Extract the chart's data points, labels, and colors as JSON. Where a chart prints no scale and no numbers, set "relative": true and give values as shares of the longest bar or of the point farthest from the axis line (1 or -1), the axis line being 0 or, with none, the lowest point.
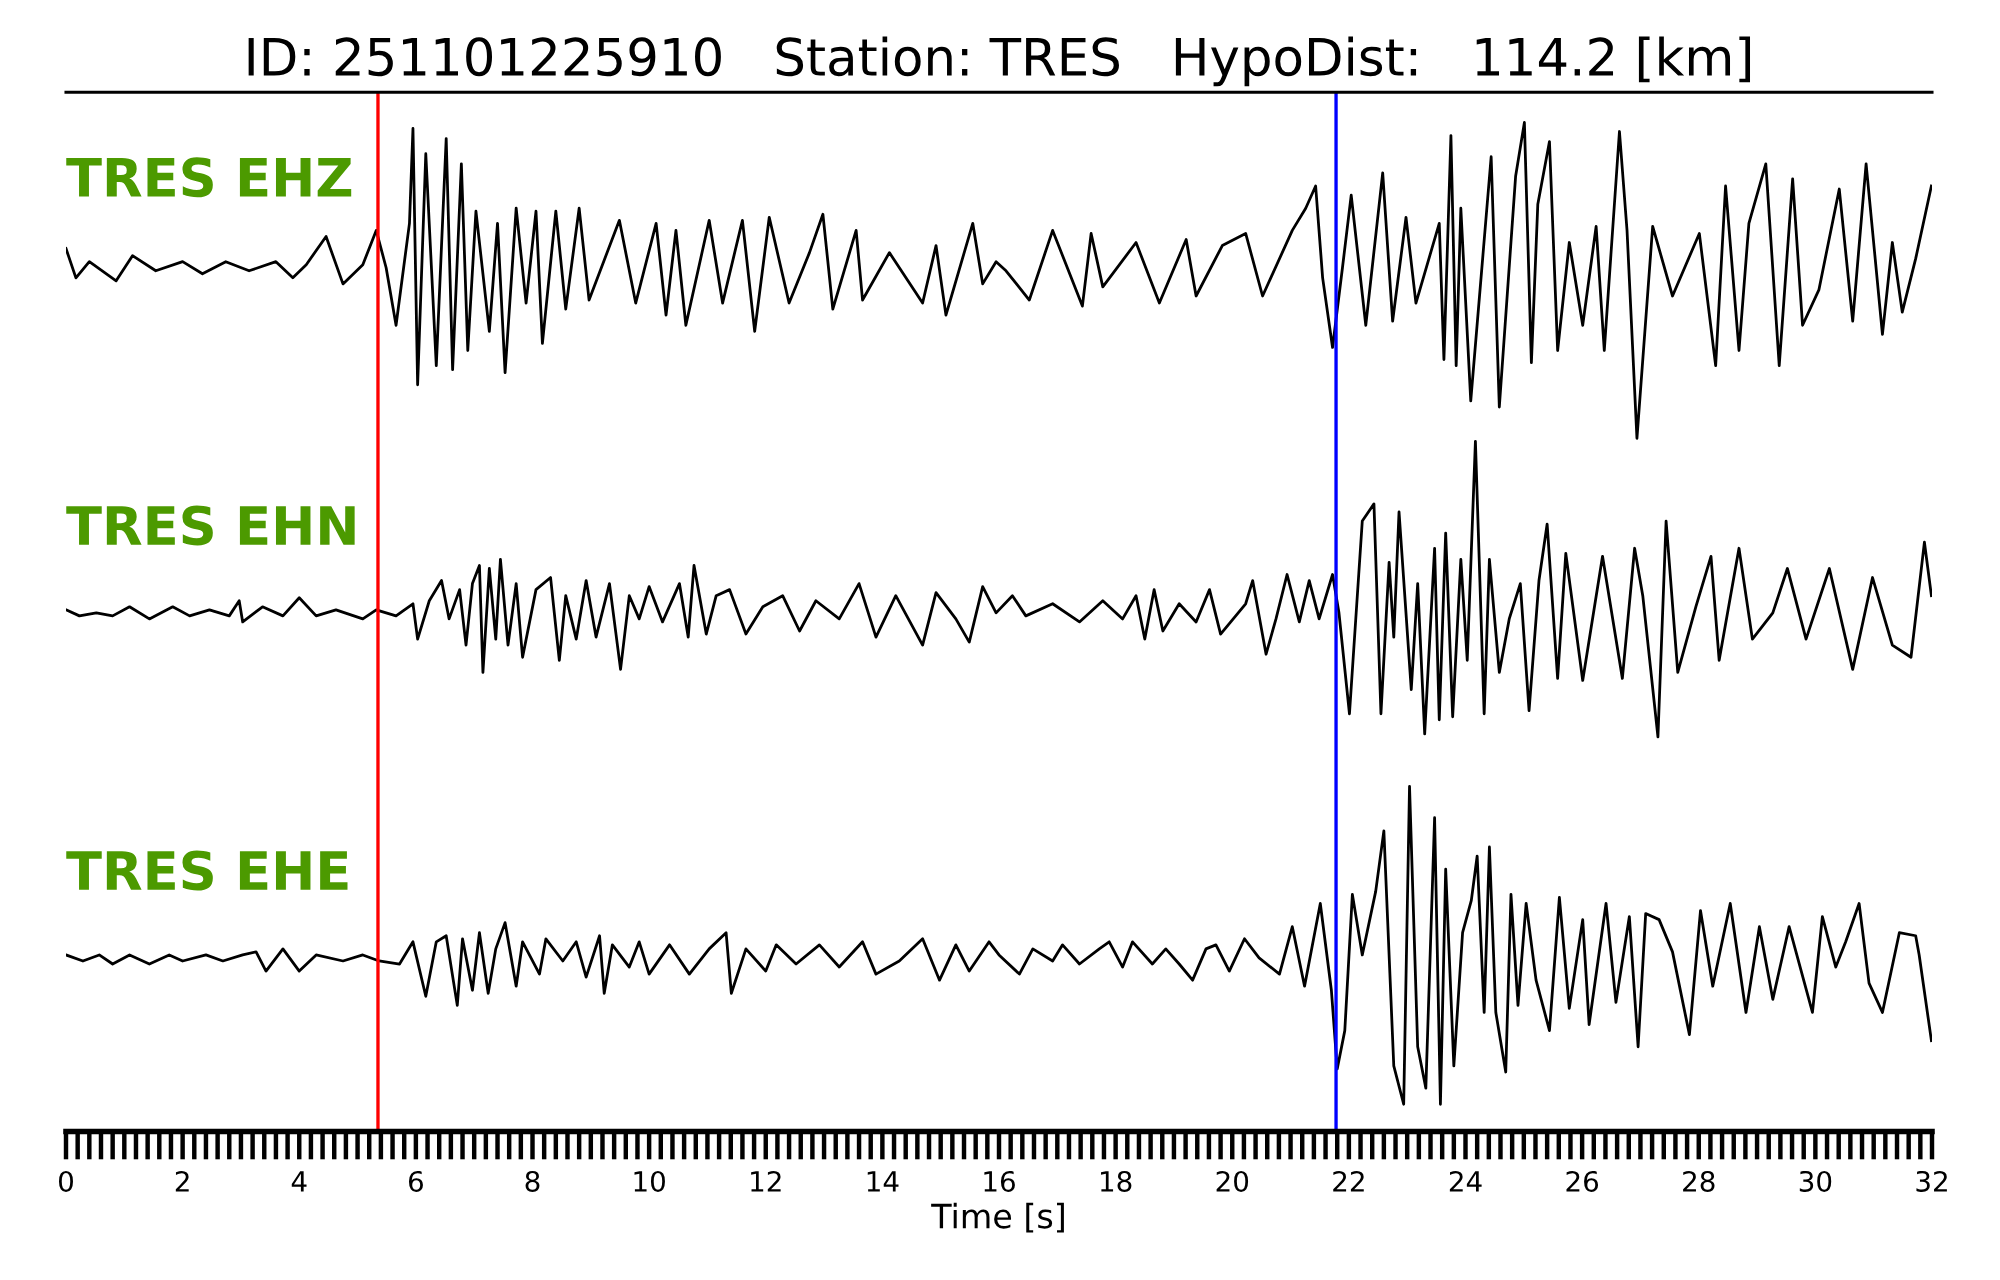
{
  "chart_data": {
    "type": "line",
    "title": "ID: 251101225910   Station: TRES   HypoDist:   114.2 [km]",
    "xlabel": "Time [s]",
    "relative": true,
    "xlim": [
      0,
      32
    ],
    "xticks": [
      0,
      {
        "value": 0.2,
        "label": null
      },
      {
        "value": 0.4,
        "label": null
      },
      {
        "value": 0.6,
        "label": null
      },
      {
        "value": 0.8,
        "label": null
      },
      {
        "value": 1,
        "label": null
      },
      {
        "value": 1.2,
        "label": null
      },
      {
        "value": 1.4,
        "label": null
      },
      {
        "value": 1.6,
        "label": null
      },
      {
        "value": 1.8,
        "label": null
      },
      2,
      {
        "value": 2.2,
        "label": null
      },
      {
        "value": 2.4,
        "label": null
      },
      {
        "value": 2.6,
        "label": null
      },
      {
        "value": 2.8,
        "label": null
      },
      {
        "value": 3,
        "label": null
      },
      {
        "value": 3.2,
        "label": null
      },
      {
        "value": 3.4,
        "label": null
      },
      {
        "value": 3.6,
        "label": null
      },
      {
        "value": 3.8,
        "label": null
      },
      4,
      {
        "value": 4.2,
        "label": null
      },
      {
        "value": 4.4,
        "label": null
      },
      {
        "value": 4.6,
        "label": null
      },
      {
        "value": 4.8,
        "label": null
      },
      {
        "value": 5,
        "label": null
      },
      {
        "value": 5.2,
        "label": null
      },
      {
        "value": 5.4,
        "label": null
      },
      {
        "value": 5.6,
        "label": null
      },
      {
        "value": 5.8,
        "label": null
      },
      6,
      {
        "value": 6.2,
        "label": null
      },
      {
        "value": 6.4,
        "label": null
      },
      {
        "value": 6.6,
        "label": null
      },
      {
        "value": 6.8,
        "label": null
      },
      {
        "value": 7,
        "label": null
      },
      {
        "value": 7.2,
        "label": null
      },
      {
        "value": 7.4,
        "label": null
      },
      {
        "value": 7.6,
        "label": null
      },
      {
        "value": 7.8,
        "label": null
      },
      8,
      {
        "value": 8.2,
        "label": null
      },
      {
        "value": 8.4,
        "label": null
      },
      {
        "value": 8.6,
        "label": null
      },
      {
        "value": 8.8,
        "label": null
      },
      {
        "value": 9,
        "label": null
      },
      {
        "value": 9.2,
        "label": null
      },
      {
        "value": 9.4,
        "label": null
      },
      {
        "value": 9.6,
        "label": null
      },
      {
        "value": 9.8,
        "label": null
      },
      10,
      {
        "value": 10.2,
        "label": null
      },
      {
        "value": 10.4,
        "label": null
      },
      {
        "value": 10.6,
        "label": null
      },
      {
        "value": 10.8,
        "label": null
      },
      {
        "value": 11,
        "label": null
      },
      {
        "value": 11.2,
        "label": null
      },
      {
        "value": 11.4,
        "label": null
      },
      {
        "value": 11.6,
        "label": null
      },
      {
        "value": 11.8,
        "label": null
      },
      12,
      {
        "value": 12.2,
        "label": null
      },
      {
        "value": 12.4,
        "label": null
      },
      {
        "value": 12.6,
        "label": null
      },
      {
        "value": 12.8,
        "label": null
      },
      {
        "value": 13,
        "label": null
      },
      {
        "value": 13.2,
        "label": null
      },
      {
        "value": 13.4,
        "label": null
      },
      {
        "value": 13.6,
        "label": null
      },
      {
        "value": 13.8,
        "label": null
      },
      14,
      {
        "value": 14.2,
        "label": null
      },
      {
        "value": 14.4,
        "label": null
      },
      {
        "value": 14.6,
        "label": null
      },
      {
        "value": 14.8,
        "label": null
      },
      {
        "value": 15,
        "label": null
      },
      {
        "value": 15.2,
        "label": null
      },
      {
        "value": 15.4,
        "label": null
      },
      {
        "value": 15.6,
        "label": null
      },
      {
        "value": 15.8,
        "label": null
      },
      16,
      {
        "value": 16.2,
        "label": null
      },
      {
        "value": 16.4,
        "label": null
      },
      {
        "value": 16.6,
        "label": null
      },
      {
        "value": 16.8,
        "label": null
      },
      {
        "value": 17,
        "label": null
      },
      {
        "value": 17.2,
        "label": null
      },
      {
        "value": 17.4,
        "label": null
      },
      {
        "value": 17.6,
        "label": null
      },
      {
        "value": 17.8,
        "label": null
      },
      18,
      {
        "value": 18.2,
        "label": null
      },
      {
        "value": 18.4,
        "label": null
      },
      {
        "value": 18.6,
        "label": null
      },
      {
        "value": 18.8,
        "label": null
      },
      {
        "value": 19,
        "label": null
      },
      {
        "value": 19.2,
        "label": null
      },
      {
        "value": 19.4,
        "label": null
      },
      {
        "value": 19.6,
        "label": null
      },
      {
        "value": 19.8,
        "label": null
      },
      20,
      {
        "value": 20.2,
        "label": null
      },
      {
        "value": 20.4,
        "label": null
      },
      {
        "value": 20.6,
        "label": null
      },
      {
        "value": 20.8,
        "label": null
      },
      {
        "value": 21,
        "label": null
      },
      {
        "value": 21.2,
        "label": null
      },
      {
        "value": 21.4,
        "label": null
      },
      {
        "value": 21.6,
        "label": null
      },
      {
        "value": 21.8,
        "label": null
      },
      22,
      {
        "value": 22.2,
        "label": null
      },
      {
        "value": 22.4,
        "label": null
      },
      {
        "value": 22.6,
        "label": null
      },
      {
        "value": 22.8,
        "label": null
      },
      {
        "value": 23,
        "label": null
      },
      {
        "value": 23.2,
        "label": null
      },
      {
        "value": 23.4,
        "label": null
      },
      {
        "value": 23.6,
        "label": null
      },
      {
        "value": 23.8,
        "label": null
      },
      24,
      {
        "value": 24.2,
        "label": null
      },
      {
        "value": 24.4,
        "label": null
      },
      {
        "value": 24.6,
        "label": null
      },
      {
        "value": 24.8,
        "label": null
      },
      {
        "value": 25,
        "label": null
      },
      {
        "value": 25.2,
        "label": null
      },
      {
        "value": 25.4,
        "label": null
      },
      {
        "value": 25.6,
        "label": null
      },
      {
        "value": 25.8,
        "label": null
      },
      26,
      {
        "value": 26.2,
        "label": null
      },
      {
        "value": 26.4,
        "label": null
      },
      {
        "value": 26.6,
        "label": null
      },
      {
        "value": 26.8,
        "label": null
      },
      {
        "value": 27,
        "label": null
      },
      {
        "value": 27.2,
        "label": null
      },
      {
        "value": 27.4,
        "label": null
      },
      {
        "value": 27.6,
        "label": null
      },
      {
        "value": 27.8,
        "label": null
      },
      28,
      {
        "value": 28.2,
        "label": null
      },
      {
        "value": 28.4,
        "label": null
      },
      {
        "value": 28.6,
        "label": null
      },
      {
        "value": 28.8,
        "label": null
      },
      {
        "value": 29,
        "label": null
      },
      {
        "value": 29.2,
        "label": null
      },
      {
        "value": 29.4,
        "label": null
      },
      {
        "value": 29.6,
        "label": null
      },
      {
        "value": 29.8,
        "label": null
      },
      30,
      {
        "value": 30.2,
        "label": null
      },
      {
        "value": 30.4,
        "label": null
      },
      {
        "value": 30.6,
        "label": null
      },
      {
        "value": 30.8,
        "label": null
      },
      {
        "value": 31,
        "label": null
      },
      {
        "value": 31.2,
        "label": null
      },
      {
        "value": 31.4,
        "label": null
      },
      {
        "value": 31.6,
        "label": null
      },
      {
        "value": 31.8,
        "label": null
      },
      32
    ],
    "series": [
      {
        "name": "TRES EHZ",
        "color": "#000000",
        "x": [
          0,
          0.17,
          0.4,
          0.86,
          1.14,
          1.54,
          2.0,
          2.34,
          2.74,
          3.14,
          3.6,
          3.89,
          4.12,
          4.46,
          4.75,
          5.09,
          5.32,
          5.49,
          5.66,
          5.89,
          5.95,
          6.03,
          6.17,
          6.35,
          6.52,
          6.63,
          6.78,
          6.89,
          7.03,
          7.26,
          7.4,
          7.53,
          7.72,
          7.89,
          8.06,
          8.17,
          8.4,
          8.57,
          8.8,
          8.97,
          9.2,
          9.49,
          9.77,
          10.12,
          10.29,
          10.46,
          10.63,
          11.03,
          11.26,
          11.6,
          11.81,
          12.06,
          12.4,
          12.75,
          12.98,
          13.15,
          13.55,
          13.66,
          14.12,
          14.69,
          14.92,
          15.09,
          15.55,
          15.72,
          15.95,
          16.12,
          16.52,
          16.92,
          17.43,
          17.58,
          17.78,
          18.35,
          18.75,
          19.21,
          19.38,
          19.83,
          20.23,
          20.52,
          21.03,
          21.26,
          21.43,
          21.55,
          21.72,
          21.89,
          22.04,
          22.29,
          22.58,
          22.75,
          22.98,
          23.15,
          23.55,
          23.63,
          23.75,
          23.84,
          23.92,
          24.09,
          24.44,
          24.58,
          24.86,
          25.01,
          25.13,
          25.24,
          25.44,
          25.58,
          25.78,
          26.01,
          26.24,
          26.38,
          26.64,
          26.77,
          26.94,
          27.21,
          27.55,
          28.01,
          28.29,
          28.46,
          28.69,
          28.86,
          29.15,
          29.38,
          29.61,
          29.78,
          30.06,
          30.41,
          30.64,
          30.87,
          31.15,
          31.32,
          31.49,
          31.72,
          31.99
        ],
        "values": [
          0.875,
          0.846,
          0.862,
          0.843,
          0.868,
          0.853,
          0.862,
          0.85,
          0.862,
          0.853,
          0.862,
          0.846,
          0.859,
          0.887,
          0.84,
          0.859,
          0.893,
          0.856,
          0.799,
          0.9,
          0.994,
          0.74,
          0.969,
          0.759,
          0.984,
          0.755,
          0.959,
          0.774,
          0.912,
          0.793,
          0.9,
          0.752,
          0.915,
          0.821,
          0.912,
          0.781,
          0.912,
          0.815,
          0.915,
          0.824,
          0.859,
          0.903,
          0.821,
          0.9,
          0.809,
          0.893,
          0.799,
          0.903,
          0.821,
          0.903,
          0.793,
          0.906,
          0.821,
          0.871,
          0.909,
          0.815,
          0.893,
          0.824,
          0.871,
          0.821,
          0.878,
          0.809,
          0.9,
          0.84,
          0.862,
          0.853,
          0.824,
          0.893,
          0.818,
          0.89,
          0.837,
          0.881,
          0.821,
          0.884,
          0.828,
          0.878,
          0.89,
          0.828,
          0.893,
          0.915,
          0.937,
          0.846,
          0.777,
          0.856,
          0.928,
          0.799,
          0.95,
          0.803,
          0.906,
          0.821,
          0.9,
          0.765,
          0.987,
          0.759,
          0.915,
          0.724,
          0.966,
          0.718,
          0.947,
          1.0,
          0.762,
          0.919,
          0.981,
          0.774,
          0.881,
          0.799,
          0.897,
          0.774,
          0.991,
          0.893,
          0.687,
          0.897,
          0.828,
          0.89,
          0.759,
          0.937,
          0.774,
          0.9,
          0.959,
          0.759,
          0.944,
          0.799,
          0.834,
          0.934,
          0.803,
          0.959,
          0.79,
          0.881,
          0.812,
          0.865,
          0.937
        ]
      },
      {
        "name": "TRES EHN",
        "color": "#000000",
        "x": [
          0,
          0.23,
          0.52,
          0.8,
          1.09,
          1.43,
          1.83,
          2.12,
          2.46,
          2.8,
          2.97,
          3.03,
          3.37,
          3.72,
          4.0,
          4.29,
          4.63,
          5.09,
          5.32,
          5.66,
          5.95,
          6.03,
          6.23,
          6.44,
          6.57,
          6.75,
          6.86,
          6.97,
          7.09,
          7.15,
          7.26,
          7.37,
          7.45,
          7.58,
          7.72,
          7.83,
          8.06,
          8.31,
          8.46,
          8.57,
          8.75,
          8.92,
          9.09,
          9.32,
          9.51,
          9.66,
          9.83,
          10.0,
          10.23,
          10.52,
          10.67,
          10.77,
          10.98,
          11.15,
          11.38,
          11.66,
          11.95,
          12.29,
          12.58,
          12.86,
          13.26,
          13.6,
          13.89,
          14.23,
          14.69,
          14.92,
          15.26,
          15.49,
          15.72,
          15.95,
          16.23,
          16.46,
          16.92,
          17.38,
          17.78,
          18.12,
          18.35,
          18.5,
          18.66,
          18.81,
          19.09,
          19.38,
          19.61,
          19.8,
          20.23,
          20.35,
          20.58,
          20.75,
          20.94,
          21.15,
          21.32,
          21.49,
          21.72,
          21.83,
          22.01,
          22.23,
          22.43,
          22.55,
          22.69,
          22.77,
          22.86,
          23.07,
          23.18,
          23.3,
          23.47,
          23.55,
          23.66,
          23.78,
          23.92,
          24.03,
          24.17,
          24.32,
          24.41,
          24.58,
          24.75,
          24.94,
          25.09,
          25.26,
          25.4,
          25.58,
          25.72,
          26.01,
          26.35,
          26.69,
          26.9,
          27.04,
          27.3,
          27.44,
          27.64,
          27.95,
          28.21,
          28.35,
          28.69,
          28.92,
          29.27,
          29.52,
          29.84,
          30.24,
          30.64,
          30.98,
          31.32,
          31.64,
          31.87,
          31.99
        ],
        "values": [
          0.517,
          0.511,
          0.514,
          0.511,
          0.52,
          0.508,
          0.52,
          0.511,
          0.517,
          0.511,
          0.526,
          0.505,
          0.52,
          0.511,
          0.529,
          0.511,
          0.517,
          0.508,
          0.517,
          0.511,
          0.523,
          0.488,
          0.526,
          0.546,
          0.508,
          0.537,
          0.482,
          0.543,
          0.561,
          0.455,
          0.558,
          0.488,
          0.567,
          0.482,
          0.543,
          0.47,
          0.537,
          0.549,
          0.467,
          0.531,
          0.488,
          0.546,
          0.49,
          0.543,
          0.458,
          0.531,
          0.508,
          0.54,
          0.505,
          0.543,
          0.49,
          0.561,
          0.493,
          0.531,
          0.537,
          0.493,
          0.52,
          0.531,
          0.496,
          0.526,
          0.508,
          0.543,
          0.49,
          0.531,
          0.482,
          0.534,
          0.508,
          0.485,
          0.54,
          0.514,
          0.531,
          0.511,
          0.523,
          0.505,
          0.526,
          0.508,
          0.531,
          0.488,
          0.537,
          0.496,
          0.523,
          0.505,
          0.537,
          0.493,
          0.523,
          0.546,
          0.473,
          0.508,
          0.552,
          0.505,
          0.546,
          0.508,
          0.552,
          0.514,
          0.414,
          0.605,
          0.622,
          0.414,
          0.564,
          0.49,
          0.614,
          0.438,
          0.543,
          0.394,
          0.578,
          0.408,
          0.593,
          0.411,
          0.567,
          0.467,
          0.684,
          0.414,
          0.567,
          0.455,
          0.508,
          0.543,
          0.417,
          0.546,
          0.602,
          0.449,
          0.573,
          0.447,
          0.57,
          0.449,
          0.578,
          0.531,
          0.391,
          0.605,
          0.455,
          0.52,
          0.57,
          0.467,
          0.578,
          0.488,
          0.514,
          0.558,
          0.488,
          0.558,
          0.458,
          0.549,
          0.482,
          0.47,
          0.584,
          0.531
        ]
      },
      {
        "name": "TRES EHE",
        "color": "#000000",
        "x": [
          0,
          0.29,
          0.57,
          0.8,
          1.09,
          1.43,
          1.77,
          2.0,
          2.4,
          2.69,
          3.03,
          3.26,
          3.43,
          3.72,
          4.0,
          4.29,
          4.75,
          5.09,
          5.37,
          5.72,
          5.95,
          6.17,
          6.35,
          6.52,
          6.71,
          6.8,
          6.97,
          7.09,
          7.24,
          7.37,
          7.53,
          7.72,
          7.83,
          8.12,
          8.23,
          8.52,
          8.75,
          8.92,
          9.15,
          9.23,
          9.37,
          9.66,
          9.83,
          10.0,
          10.35,
          10.69,
          11.03,
          11.32,
          11.41,
          11.66,
          12.0,
          12.18,
          12.52,
          12.92,
          13.26,
          13.66,
          13.89,
          14.29,
          14.69,
          14.98,
          15.26,
          15.49,
          15.83,
          16.0,
          16.35,
          16.58,
          16.92,
          17.09,
          17.38,
          17.72,
          17.89,
          18.12,
          18.29,
          18.63,
          18.86,
          19.09,
          19.32,
          19.55,
          19.72,
          19.95,
          20.21,
          20.46,
          20.81,
          21.03,
          21.24,
          21.51,
          21.7,
          21.8,
          21.93,
          22.06,
          22.23,
          22.46,
          22.6,
          22.77,
          22.94,
          23.04,
          23.18,
          23.32,
          23.47,
          23.57,
          23.66,
          23.8,
          23.95,
          24.1,
          24.2,
          24.32,
          24.41,
          24.52,
          24.69,
          24.78,
          24.9,
          25.04,
          25.21,
          25.44,
          25.61,
          25.78,
          26.01,
          26.12,
          26.41,
          26.58,
          26.81,
          26.96,
          27.09,
          27.32,
          27.55,
          27.84,
          28.03,
          28.24,
          28.54,
          28.81,
          29.04,
          29.27,
          29.55,
          29.95,
          30.12,
          30.35,
          30.52,
          30.75,
          30.92,
          31.15,
          31.44,
          31.72,
          31.78,
          31.99
        ],
        "values": [
          0.175,
          0.169,
          0.175,
          0.166,
          0.175,
          0.166,
          0.175,
          0.169,
          0.175,
          0.169,
          0.175,
          0.178,
          0.159,
          0.181,
          0.159,
          0.175,
          0.169,
          0.175,
          0.169,
          0.166,
          0.188,
          0.134,
          0.188,
          0.194,
          0.125,
          0.191,
          0.14,
          0.197,
          0.137,
          0.181,
          0.207,
          0.144,
          0.188,
          0.156,
          0.191,
          0.169,
          0.188,
          0.153,
          0.194,
          0.137,
          0.185,
          0.163,
          0.188,
          0.156,
          0.185,
          0.156,
          0.181,
          0.197,
          0.137,
          0.181,
          0.159,
          0.185,
          0.166,
          0.185,
          0.163,
          0.188,
          0.156,
          0.169,
          0.191,
          0.15,
          0.185,
          0.159,
          0.188,
          0.175,
          0.156,
          0.181,
          0.169,
          0.185,
          0.166,
          0.181,
          0.188,
          0.163,
          0.188,
          0.166,
          0.181,
          0.166,
          0.15,
          0.181,
          0.185,
          0.159,
          0.191,
          0.172,
          0.156,
          0.203,
          0.144,
          0.226,
          0.14,
          0.062,
          0.1,
          0.235,
          0.175,
          0.238,
          0.298,
          0.065,
          0.027,
          0.342,
          0.084,
          0.043,
          0.311,
          0.027,
          0.26,
          0.065,
          0.197,
          0.229,
          0.273,
          0.118,
          0.282,
          0.118,
          0.059,
          0.235,
          0.125,
          0.226,
          0.15,
          0.1,
          0.232,
          0.122,
          0.21,
          0.106,
          0.226,
          0.128,
          0.213,
          0.084,
          0.216,
          0.21,
          0.178,
          0.096,
          0.219,
          0.144,
          0.226,
          0.118,
          0.203,
          0.131,
          0.203,
          0.118,
          0.213,
          0.163,
          0.188,
          0.226,
          0.147,
          0.118,
          0.197,
          0.194,
          0.175,
          0.09
        ]
      }
    ],
    "ref_lines": [
      {
        "axis": "x",
        "value": 5.35,
        "color": "#ff0000"
      },
      {
        "axis": "x",
        "value": 21.78,
        "color": "#0000ff"
      }
    ]
  }
}
